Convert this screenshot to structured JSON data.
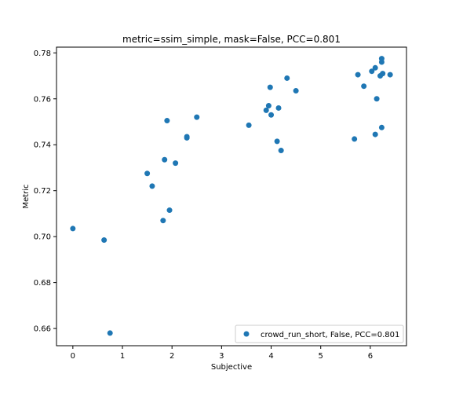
{
  "chart_data": {
    "type": "scatter",
    "title": "metric=ssim_simple, mask=False, PCC=0.801",
    "xlabel": "Subjective",
    "ylabel": "Metric",
    "xlim": [
      -0.33,
      6.73
    ],
    "ylim": [
      0.6525,
      0.7825
    ],
    "xticks": [
      0,
      1,
      2,
      3,
      4,
      5,
      6
    ],
    "yticks": [
      0.66,
      0.68,
      0.7,
      0.72,
      0.74,
      0.76,
      0.78
    ],
    "ytick_labels": [
      "0.66",
      "0.68",
      "0.70",
      "0.72",
      "0.74",
      "0.76",
      "0.78"
    ],
    "grid": false,
    "legend_position": "lower-right",
    "series": [
      {
        "name": "crowd_run_short, False, PCC=0.801",
        "color": "#1f77b4",
        "points": [
          {
            "x": 0.0,
            "y": 0.7035
          },
          {
            "x": 0.63,
            "y": 0.6985
          },
          {
            "x": 0.75,
            "y": 0.658
          },
          {
            "x": 1.5,
            "y": 0.7275
          },
          {
            "x": 1.6,
            "y": 0.722
          },
          {
            "x": 1.82,
            "y": 0.707
          },
          {
            "x": 1.85,
            "y": 0.7335
          },
          {
            "x": 1.9,
            "y": 0.7505
          },
          {
            "x": 1.95,
            "y": 0.7115
          },
          {
            "x": 2.07,
            "y": 0.732
          },
          {
            "x": 2.3,
            "y": 0.7435
          },
          {
            "x": 2.3,
            "y": 0.743
          },
          {
            "x": 2.5,
            "y": 0.752
          },
          {
            "x": 3.55,
            "y": 0.7485
          },
          {
            "x": 3.9,
            "y": 0.755
          },
          {
            "x": 3.95,
            "y": 0.757
          },
          {
            "x": 3.98,
            "y": 0.765
          },
          {
            "x": 4.0,
            "y": 0.753
          },
          {
            "x": 4.12,
            "y": 0.7415
          },
          {
            "x": 4.15,
            "y": 0.756
          },
          {
            "x": 4.2,
            "y": 0.7375
          },
          {
            "x": 4.32,
            "y": 0.769
          },
          {
            "x": 4.5,
            "y": 0.7635
          },
          {
            "x": 5.68,
            "y": 0.7425
          },
          {
            "x": 5.75,
            "y": 0.7705
          },
          {
            "x": 5.87,
            "y": 0.7655
          },
          {
            "x": 6.03,
            "y": 0.772
          },
          {
            "x": 6.1,
            "y": 0.7735
          },
          {
            "x": 6.1,
            "y": 0.7445
          },
          {
            "x": 6.13,
            "y": 0.76
          },
          {
            "x": 6.2,
            "y": 0.77
          },
          {
            "x": 6.23,
            "y": 0.7475
          },
          {
            "x": 6.23,
            "y": 0.776
          },
          {
            "x": 6.23,
            "y": 0.7775
          },
          {
            "x": 6.25,
            "y": 0.771
          },
          {
            "x": 6.4,
            "y": 0.7705
          }
        ]
      }
    ]
  }
}
